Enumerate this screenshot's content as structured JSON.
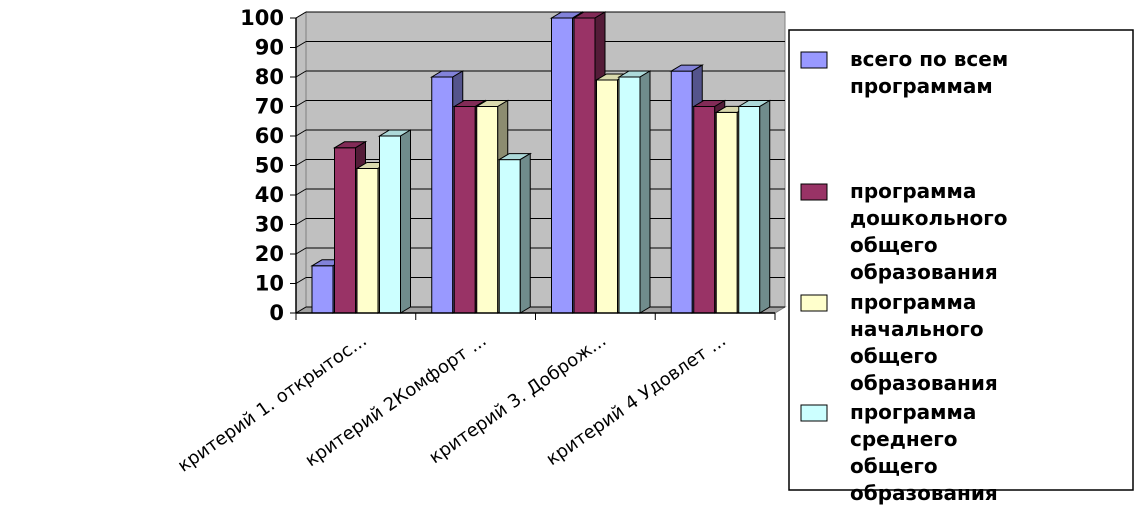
{
  "chart_data": {
    "type": "bar",
    "categories": [
      "критерий 1. открытос...",
      "критерий 2Комфорт ...",
      "критерий 3. Доброж...",
      "критерий 4 Удовлет ..."
    ],
    "series": [
      {
        "name": "всего по всем программам",
        "color": "#9999FF",
        "values": [
          16,
          80,
          100,
          82
        ]
      },
      {
        "name": "программа дошкольного общего образования",
        "color": "#993366",
        "values": [
          56,
          70,
          100,
          70
        ]
      },
      {
        "name": "программа начального общего образования",
        "color": "#FFFFCC",
        "values": [
          49,
          70,
          79,
          68
        ]
      },
      {
        "name": "программа среднего общего образования",
        "color": "#CCFFFF",
        "values": [
          60,
          52,
          80,
          70
        ]
      }
    ],
    "y_ticks": [
      "0",
      "10",
      "20",
      "30",
      "40",
      "50",
      "60",
      "70",
      "80",
      "90",
      "100"
    ],
    "ylim": [
      0,
      100
    ],
    "grid": true,
    "legend_position": "right",
    "legend": {
      "entries": [
        [
          "всего по всем",
          "программам"
        ],
        [
          "программа",
          "дошкольного",
          "общего",
          "образования"
        ],
        [
          "программа",
          "начального",
          "общего",
          "образования"
        ],
        [
          "программа",
          "среднего",
          "общего",
          "образования"
        ]
      ]
    }
  }
}
